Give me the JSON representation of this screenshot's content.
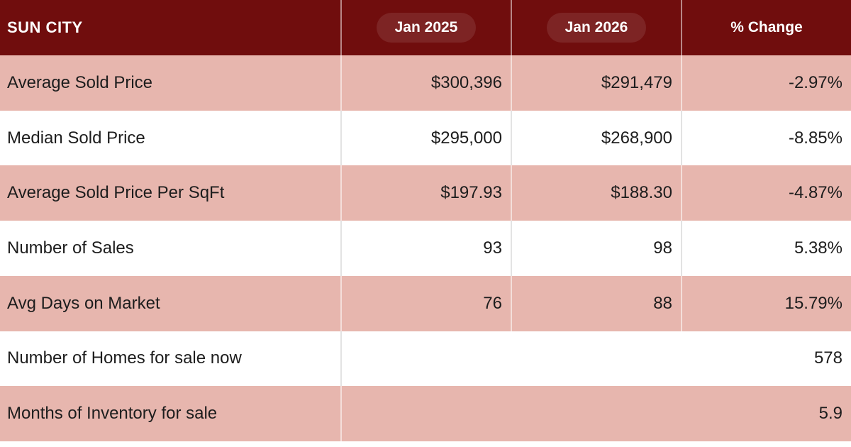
{
  "chart_data": {
    "type": "table",
    "title": "SUN CITY",
    "columns": [
      "",
      "Jan 2025",
      "Jan 2026",
      "% Change"
    ],
    "rows": [
      [
        "Average Sold Price",
        "$300,396",
        "$291,479",
        "-2.97%"
      ],
      [
        "Median Sold Price",
        "$295,000",
        "$268,900",
        "-8.85%"
      ],
      [
        "Average Sold Price Per SqFt",
        "$197.93",
        "$188.30",
        "-4.87%"
      ],
      [
        "Number of Sales",
        "93",
        "98",
        "5.38%"
      ],
      [
        "Avg Days on Market",
        "76",
        "88",
        "15.79%"
      ],
      [
        "Number of Homes for sale now",
        "",
        "",
        "578"
      ],
      [
        "Months of Inventory for sale",
        "",
        "",
        "5.9"
      ]
    ],
    "summary_rows": [
      {
        "label": "Number of Homes for sale now",
        "value": "578"
      },
      {
        "label": "Months of Inventory for sale",
        "value": "5.9"
      }
    ],
    "layout_hints": {
      "header_bg": "#700d0d",
      "header_pill_bg": "#7d2424",
      "pink_row_bg": "#e7b6ae",
      "white_row_bg": "#ffffff",
      "text_color": "#1d1d1d",
      "header_text_color": "#ffffff",
      "value_alignment": "right",
      "last_two_rows_merged": true
    }
  }
}
